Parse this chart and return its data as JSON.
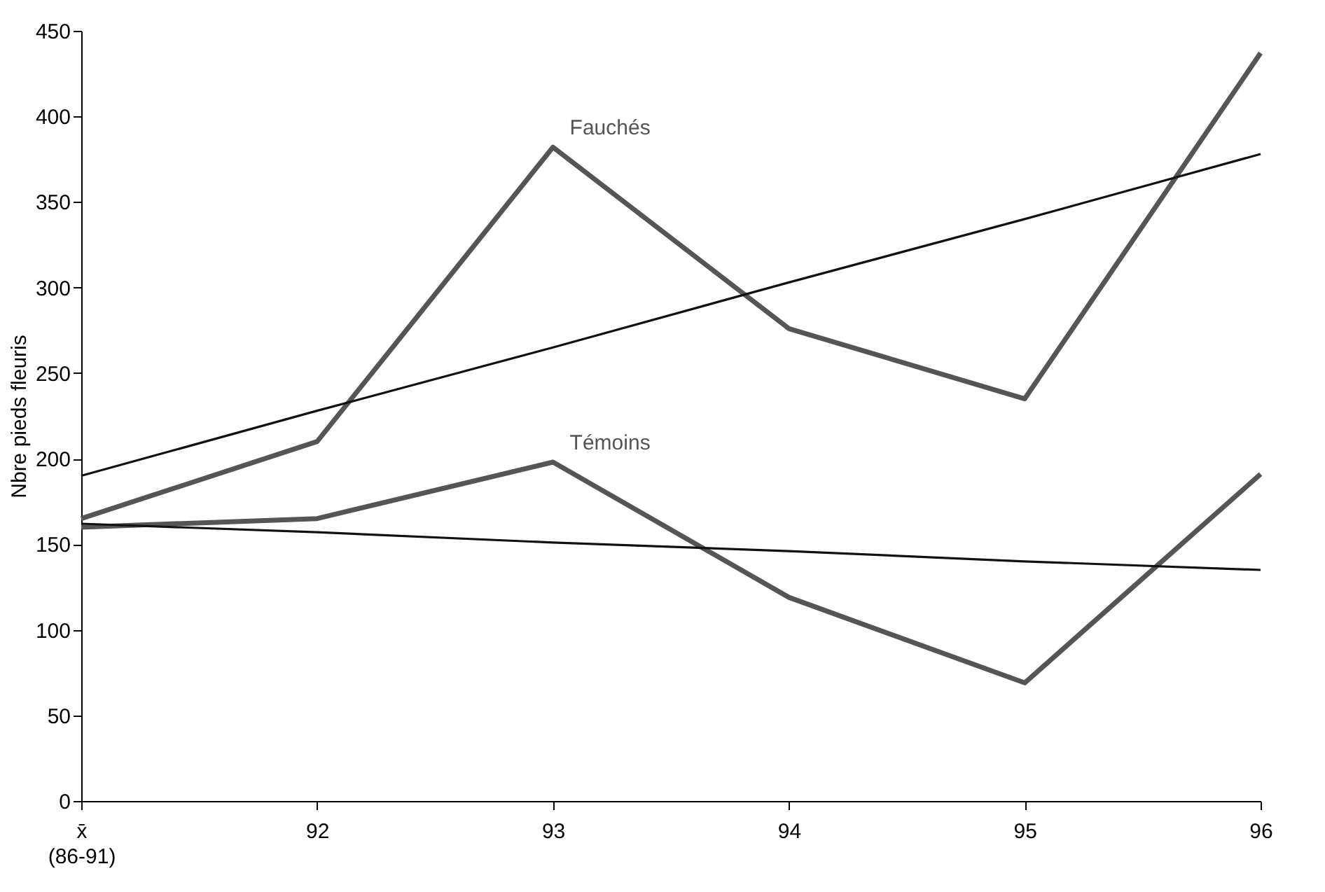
{
  "chart_data": {
    "type": "line",
    "ylabel": "Nbre pieds fleuris",
    "categories": [
      "x̄\n(86-91)",
      "92",
      "93",
      "94",
      "95",
      "96"
    ],
    "series": [
      {
        "name": "Fauchés",
        "color": "#555555",
        "values": [
          165,
          210,
          382,
          276,
          235,
          437
        ]
      },
      {
        "type": "line",
        "color": "#111111",
        "values": [
          190,
          228,
          265,
          303,
          340,
          378
        ]
      },
      {
        "name": "Témoins",
        "color": "#555555",
        "values": [
          160,
          165,
          198,
          119,
          69,
          191
        ]
      },
      {
        "type": "line",
        "color": "#111111",
        "values": [
          162,
          157,
          151,
          146,
          140,
          135
        ]
      }
    ],
    "ylim": [
      0,
      450
    ],
    "yticks": [
      0,
      50,
      100,
      150,
      200,
      250,
      300,
      350,
      400,
      450
    ],
    "grid": false,
    "marker": "none",
    "line_style": "solid"
  }
}
